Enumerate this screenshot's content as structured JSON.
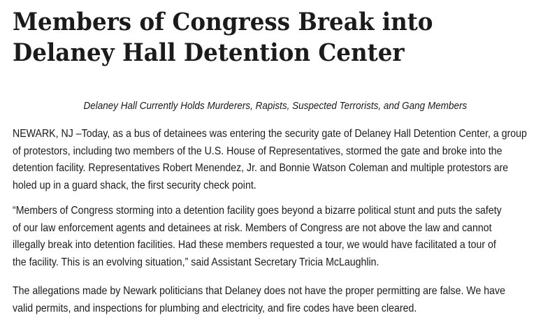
{
  "article": {
    "title_lines": [
      "Members of Congress Break into",
      "Delaney Hall Detention Center"
    ],
    "subtitle": "Delaney Hall Currently Holds Murderers, Rapists, Suspected Terrorists, and Gang Members",
    "paragraphs": [
      [
        "NEWARK, NJ –Today, as a bus of detainees was entering the security gate of Delaney Hall Detention Center, a group",
        "of protestors, including two members of the U.S. House of Representatives, stormed the gate and broke into the",
        "detention facility. Representatives Robert Menendez, Jr. and Bonnie Watson Coleman and multiple protestors are",
        "holed up in a guard shack, the first security check point."
      ],
      [
        "“Members of Congress storming into a detention facility goes beyond a bizarre political stunt and puts the safety",
        "of our law enforcement agents and detainees at risk. Members of Congress are not above the law and cannot",
        "illegally break into detention facilities. Had these members requested a tour, we would have facilitated a tour of",
        "the facility. This is an evolving situation,” said Assistant Secretary Tricia McLaughlin."
      ],
      [
        "The allegations made by Newark politicians that Delaney does not have the proper permitting are false. We have",
        "valid permits, and inspections for plumbing and electricity, and fire codes have been cleared."
      ]
    ]
  }
}
